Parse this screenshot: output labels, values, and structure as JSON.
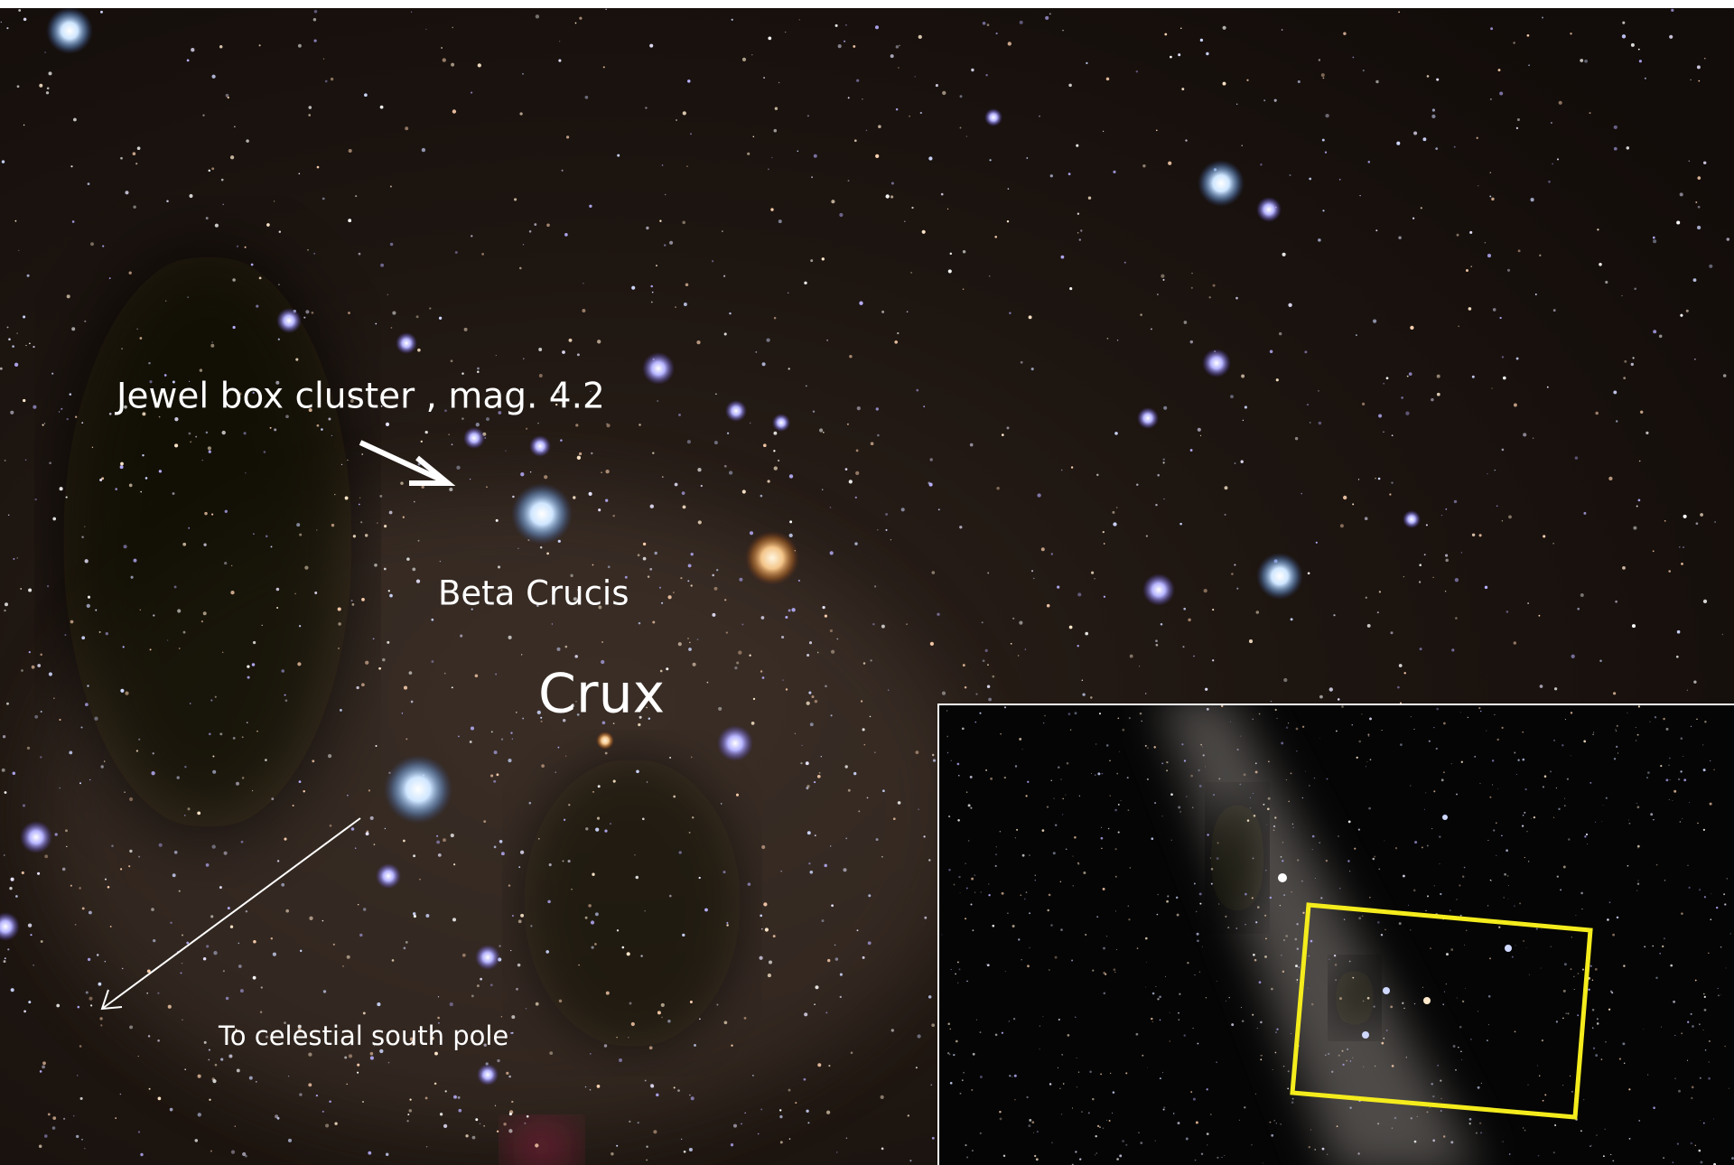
{
  "labels": {
    "jewel_box": "Jewel box cluster , mag. 4.2",
    "beta_crucis": "Beta Crucis",
    "crux": "Crux",
    "south_pole": "To celestial south pole"
  }
}
